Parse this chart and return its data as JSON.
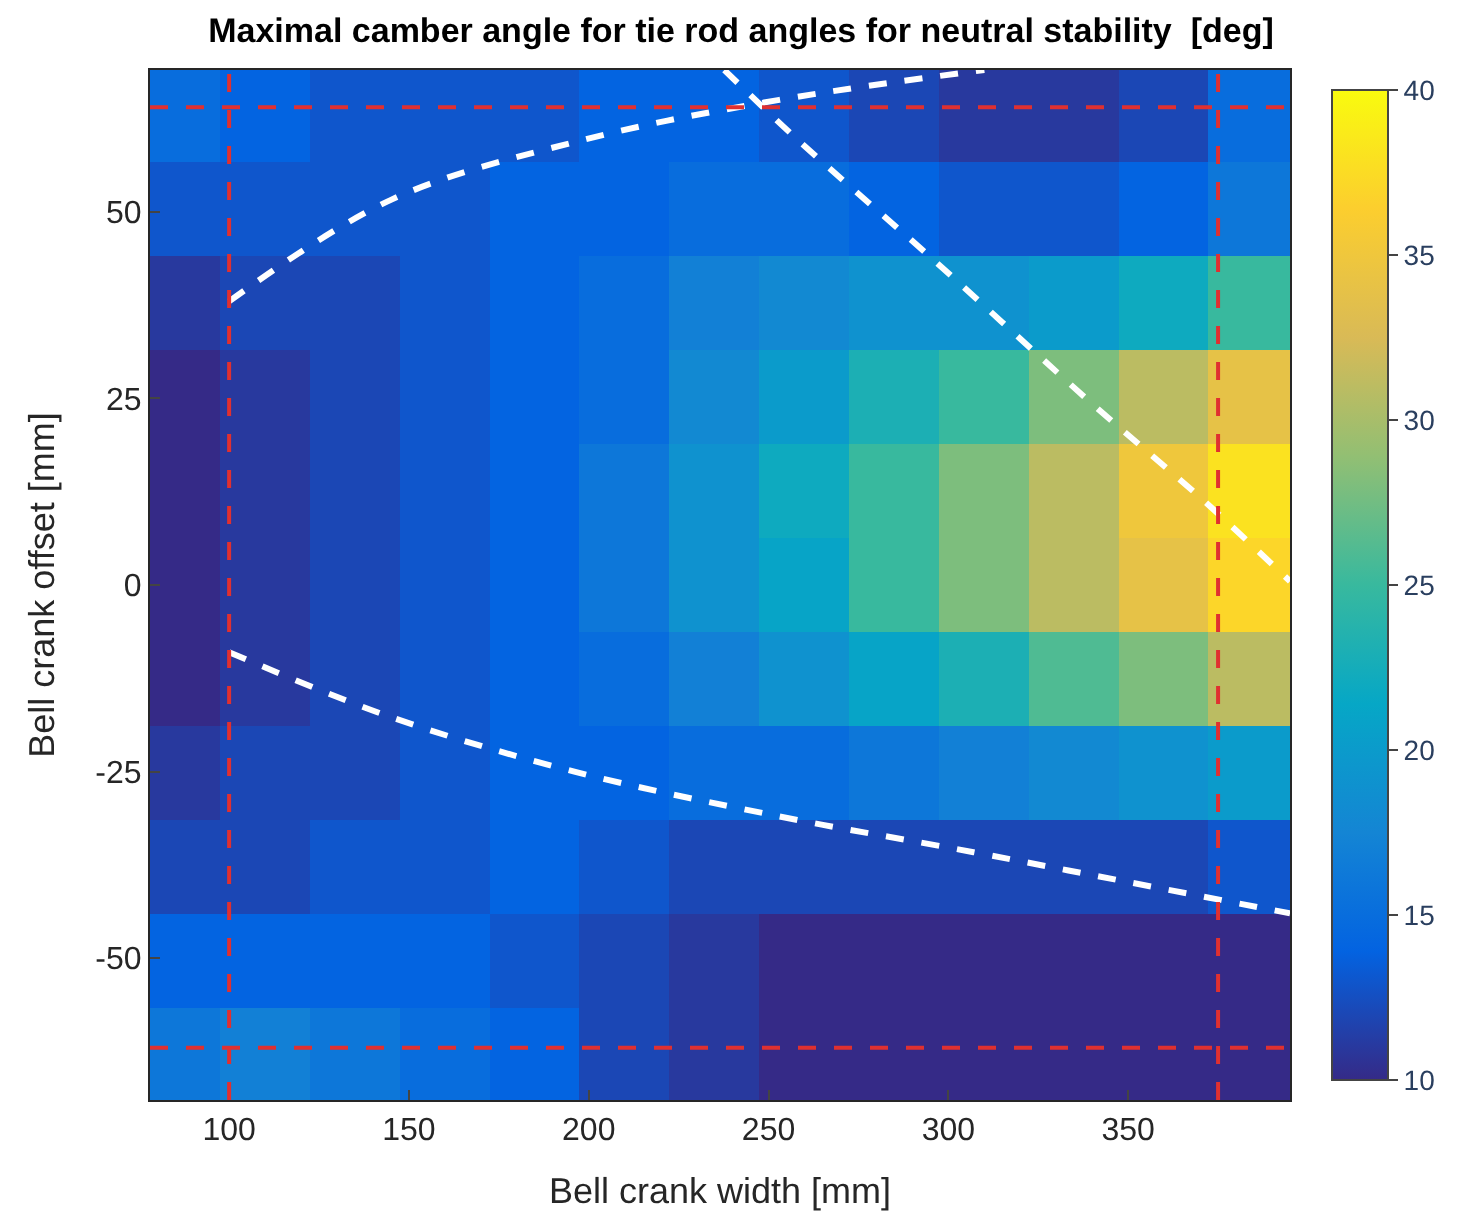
{
  "chart_data": {
    "type": "heatmap",
    "title": "Maximal camber angle for tie rod angles for neutral stability  [deg]",
    "xlabel": "Bell crank width [mm]",
    "ylabel": "Bell crank offset [mm]",
    "x": [
      85,
      110,
      135,
      160,
      185,
      210,
      235,
      260,
      285,
      310,
      335,
      360,
      385
    ],
    "y": [
      63,
      50.4,
      37.8,
      25.2,
      12.6,
      0,
      -12.6,
      -25.2,
      -37.8,
      -50.4,
      -63
    ],
    "cells": [
      [
        15,
        14,
        13,
        13,
        13,
        14,
        14,
        13,
        12,
        11,
        11,
        12,
        15
      ],
      [
        13,
        13,
        13,
        13,
        14,
        14,
        15,
        15,
        14,
        13,
        13,
        14,
        16
      ],
      [
        11,
        12,
        12,
        13,
        14,
        15,
        17,
        18,
        19,
        19,
        20,
        22,
        25
      ],
      [
        10,
        11,
        12,
        13,
        14,
        15,
        18,
        20,
        23,
        25,
        28,
        31,
        34
      ],
      [
        10,
        11,
        12,
        13,
        14,
        16,
        19,
        22,
        25,
        28,
        31,
        35,
        38
      ],
      [
        10,
        11,
        12,
        13,
        14,
        16,
        19,
        21,
        25,
        28,
        31,
        34,
        37
      ],
      [
        10,
        11,
        12,
        13,
        14,
        15,
        17,
        19,
        21,
        23,
        26,
        28,
        31
      ],
      [
        11,
        12,
        12,
        13,
        14,
        14,
        15,
        15,
        16,
        17,
        18,
        19,
        20
      ],
      [
        12,
        12,
        13,
        13,
        14,
        13,
        12,
        12,
        12,
        12,
        12,
        12,
        13
      ],
      [
        14,
        14,
        14,
        14,
        13,
        12,
        11,
        10,
        10,
        10,
        10,
        10,
        10
      ],
      [
        16,
        17,
        16,
        15,
        14,
        12,
        11,
        10,
        10,
        10,
        10,
        10,
        10
      ]
    ],
    "clim": [
      10,
      40
    ],
    "cticks": [
      10,
      15,
      20,
      25,
      30,
      35,
      40
    ],
    "xlim": [
      78,
      395
    ],
    "ylim": [
      -69,
      69
    ],
    "xticks": [
      100,
      150,
      200,
      250,
      300,
      350
    ],
    "yticks": [
      -50,
      -25,
      0,
      25,
      50
    ],
    "series": [
      {
        "type": "line",
        "color": "#ffffff",
        "line_style": "dashed",
        "x": [
          100,
          145,
          199,
          253,
          310
        ],
        "values": [
          38,
          51.6,
          59.7,
          65,
          69
        ]
      },
      {
        "type": "line",
        "color": "#ffffff",
        "line_style": "dashed",
        "x": [
          100,
          145,
          196,
          253,
          307,
          350,
          395
        ],
        "values": [
          -9,
          -17.7,
          -25,
          -31,
          -35.8,
          -39.8,
          -44
        ]
      },
      {
        "type": "line",
        "color": "#ffffff",
        "line_style": "dashed",
        "x": [
          237.7,
          258,
          296,
          339,
          371,
          395
        ],
        "values": [
          69,
          59.7,
          43.5,
          24.7,
          11.3,
          0.5
        ]
      }
    ],
    "ref_lines": [
      {
        "axis": "x",
        "value": 100,
        "color": "#e03030",
        "line_style": "dashed"
      },
      {
        "axis": "x",
        "value": 375,
        "color": "#e03030",
        "line_style": "dashed"
      },
      {
        "axis": "y",
        "value": 64,
        "color": "#e03030",
        "line_style": "dashed"
      },
      {
        "axis": "y",
        "value": -62,
        "color": "#e03030",
        "line_style": "dashed"
      }
    ],
    "legend": false
  }
}
